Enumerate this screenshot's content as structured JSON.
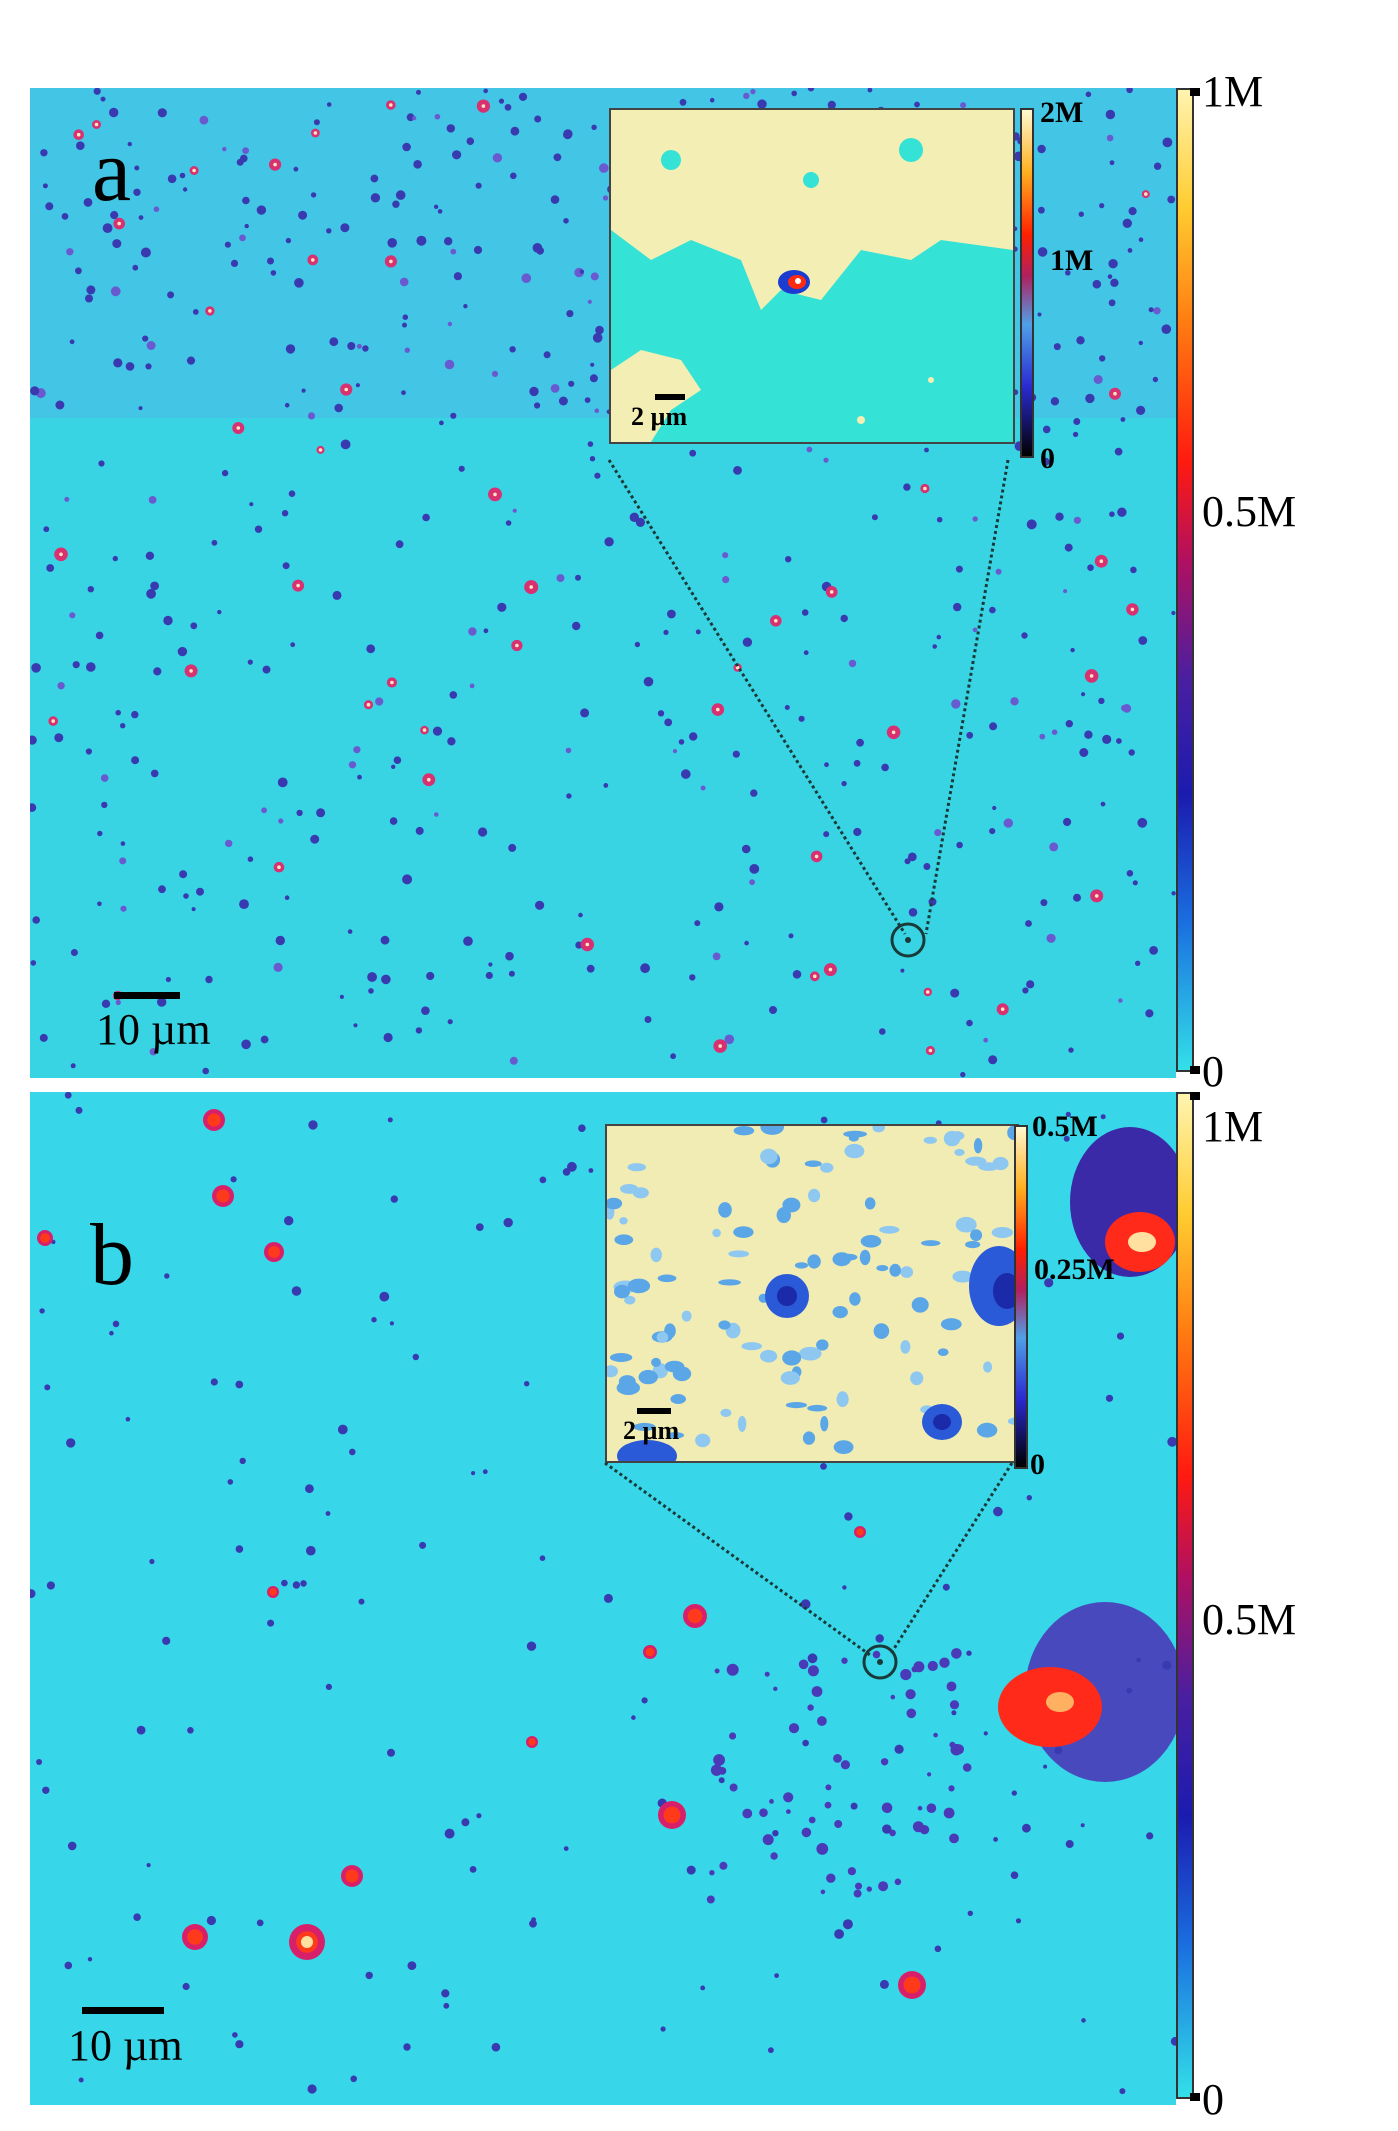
{
  "panels": [
    {
      "letter": "a",
      "scale_label": "10 µm",
      "colorbar": {
        "max": "1M",
        "mid": "0.5M",
        "min": "0"
      },
      "inset": {
        "scale_label": "2 µm",
        "colorbar": {
          "max": "2M",
          "mid": "1M",
          "min": "0"
        }
      }
    },
    {
      "letter": "b",
      "scale_label": "10 µm",
      "colorbar": {
        "max": "1M",
        "mid": "0.5M",
        "min": "0"
      },
      "inset": {
        "scale_label": "2 µm",
        "colorbar": {
          "max": "0.5M",
          "mid": "0.25M",
          "min": "0"
        }
      }
    }
  ],
  "colors": {
    "background_map": "#35d8e6",
    "particle_dark": "#3a2aa8",
    "particle_hot": "#ff2a1a",
    "inset_bg_a": "#35e0d8",
    "inset_high": "#f3efb0"
  }
}
